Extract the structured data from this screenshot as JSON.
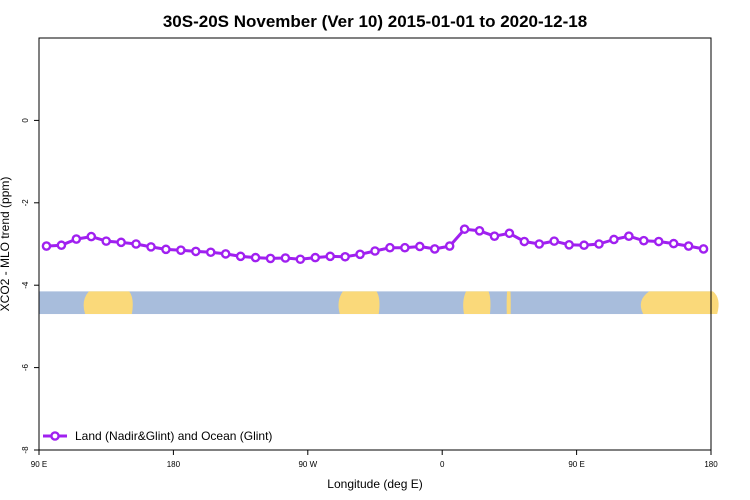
{
  "chart_data": {
    "type": "line",
    "title": "30S-20S November (Ver 10)   2015-01-01 to 2020-12-18",
    "xlabel": "Longitude (deg E)",
    "ylabel": "XCO2 - MLO trend (ppm)",
    "xlim": [
      90,
      540
    ],
    "ylim": [
      -8,
      2
    ],
    "x_ticks": [
      {
        "value": 90,
        "label": "90 E"
      },
      {
        "value": 180,
        "label": "180"
      },
      {
        "value": 270,
        "label": "90 W"
      },
      {
        "value": 360,
        "label": "0"
      },
      {
        "value": 450,
        "label": "90 E"
      },
      {
        "value": 540,
        "label": "180"
      }
    ],
    "y_ticks": [
      {
        "value": -8,
        "label": "-8"
      },
      {
        "value": -6,
        "label": "-6"
      },
      {
        "value": -4,
        "label": "-4"
      },
      {
        "value": -2,
        "label": "-2"
      },
      {
        "value": 0,
        "label": "0"
      }
    ],
    "series": [
      {
        "name": "Land (Nadir&Glint) and Ocean (Glint)",
        "color": "#a020f0",
        "x": [
          95,
          105,
          115,
          125,
          135,
          145,
          155,
          165,
          175,
          185,
          195,
          205,
          215,
          225,
          235,
          245,
          255,
          265,
          275,
          285,
          295,
          305,
          315,
          325,
          335,
          345,
          355,
          365,
          375,
          385,
          395,
          405,
          415,
          425,
          435,
          445,
          455,
          465,
          475,
          485,
          495,
          505,
          515,
          525,
          535
        ],
        "y": [
          -3.05,
          -3.03,
          -2.88,
          -2.82,
          -2.93,
          -2.96,
          -3.0,
          -3.07,
          -3.13,
          -3.15,
          -3.18,
          -3.2,
          -3.24,
          -3.3,
          -3.33,
          -3.35,
          -3.34,
          -3.37,
          -3.33,
          -3.3,
          -3.31,
          -3.25,
          -3.17,
          -3.09,
          -3.09,
          -3.06,
          -3.12,
          -3.05,
          -2.64,
          -2.68,
          -2.81,
          -2.74,
          -2.94,
          -3.0,
          -2.93,
          -3.02,
          -3.03,
          -3.0,
          -2.89,
          -2.81,
          -2.92,
          -2.94,
          -2.99,
          -3.05,
          -3.12
        ]
      }
    ],
    "legend": {
      "placement": "bottom-left",
      "label": "Land (Nadir&Glint) and Ocean (Glint)"
    },
    "band": {
      "y_range": [
        -4.7,
        -4.15
      ],
      "ocean_color": "#a8bddc",
      "land_color": "#fad97a",
      "land_segments": [
        [
          118,
          154
        ],
        [
          289,
          319
        ],
        [
          373,
          393
        ],
        [
          403,
          406
        ],
        [
          490,
          547
        ]
      ]
    }
  }
}
